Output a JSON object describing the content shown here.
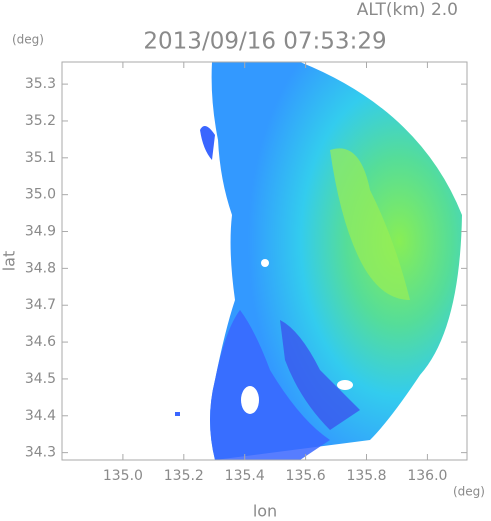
{
  "chart_data": {
    "type": "radar-map",
    "title": "2013/09/16 07:53:29",
    "altitude_label": "ALT(km) 2.0",
    "x_label": "lon",
    "y_label": "lat",
    "x_unit": "(deg)",
    "y_unit": "(deg)",
    "xlim": [
      134.8,
      136.13
    ],
    "ylim": [
      34.28,
      35.36
    ],
    "xticks": [
      {
        "value": 135.0,
        "label": "135.0"
      },
      135.2,
      135.4,
      135.6,
      135.8,
      {
        "value": 136.0,
        "label": "136.0"
      }
    ],
    "yticks": [
      35.3,
      35.2,
      35.1,
      {
        "value": 35.0,
        "label": "35.0"
      },
      34.9,
      34.8,
      34.7,
      34.6,
      34.5,
      34.4,
      34.3
    ]
  }
}
